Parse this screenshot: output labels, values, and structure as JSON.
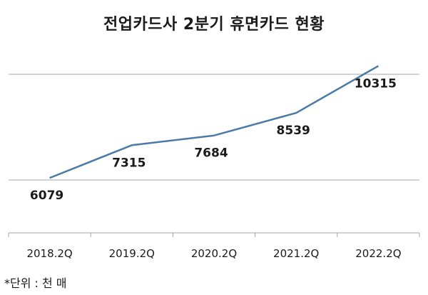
{
  "chart_data": {
    "type": "line",
    "title": "전업카드사 2분기 휴면카드 현황",
    "categories": [
      "2018.2Q",
      "2019.2Q",
      "2020.2Q",
      "2021.2Q",
      "2022.2Q"
    ],
    "series": [
      {
        "values": [
          6079,
          7315,
          7684,
          8539,
          10315
        ]
      }
    ],
    "data_labels": [
      "6079",
      "7315",
      "7684",
      "8539",
      "10315"
    ],
    "ylim": [
      4000,
      12000
    ],
    "grid": true,
    "line_color": "#4a7aa5"
  },
  "note": "*단위 : 천 매"
}
